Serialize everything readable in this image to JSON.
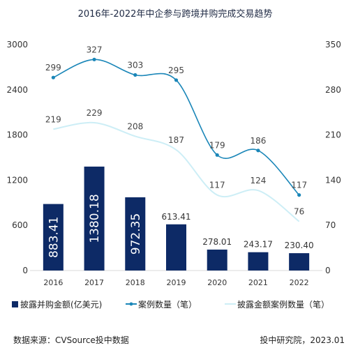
{
  "chart_data": {
    "type": "bar",
    "title": "2016年-2022年中企参与跨境并购完成交易趋势",
    "categories": [
      "2016",
      "2017",
      "2018",
      "2019",
      "2020",
      "2021",
      "2022"
    ],
    "y_left": {
      "ticks": [
        "0",
        "600",
        "1200",
        "1800",
        "2400",
        "3000"
      ],
      "ylim": [
        0,
        3000
      ]
    },
    "y_right": {
      "ticks": [
        "0",
        "70",
        "140",
        "210",
        "280",
        "350"
      ],
      "ylim": [
        0,
        350
      ]
    },
    "series": [
      {
        "name": "披露并购金额(亿美元)",
        "type": "bar",
        "axis": "left",
        "values": [
          883.41,
          1380.18,
          972.35,
          613.41,
          278.01,
          243.17,
          230.4
        ],
        "labels": [
          "883.41",
          "1380.18",
          "972.35",
          "613.41",
          "278.01",
          "243.17",
          "230.40"
        ],
        "color": "#0d2a66"
      },
      {
        "name": "案例数量（笔）",
        "type": "line",
        "axis": "right",
        "values": [
          299,
          327,
          303,
          295,
          179,
          186,
          117
        ],
        "labels": [
          "299",
          "327",
          "303",
          "295",
          "179",
          "186",
          "117"
        ],
        "color": "#1a86b8"
      },
      {
        "name": "披露金额案例数量（笔）",
        "type": "line",
        "axis": "right",
        "values": [
          219,
          229,
          208,
          187,
          117,
          124,
          76
        ],
        "labels": [
          "219",
          "229",
          "208",
          "187",
          "117",
          "124",
          "76"
        ],
        "color": "#cdeef6"
      }
    ],
    "grid": false,
    "legend_position": "bottom"
  },
  "footer": {
    "source": "数据来源：CVSource投中数据",
    "credit": "投中研究院，2023.01"
  }
}
